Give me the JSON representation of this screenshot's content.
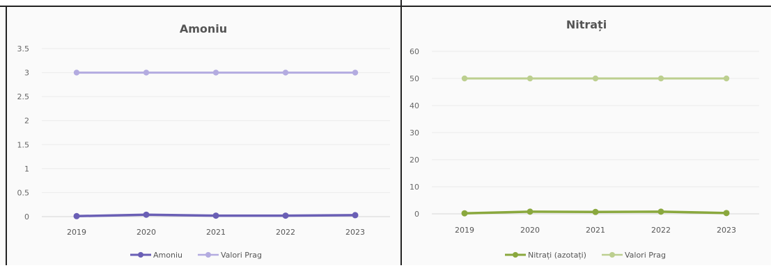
{
  "chart_data": [
    {
      "type": "line",
      "title": "Amoniu",
      "x": [
        "2019",
        "2020",
        "2021",
        "2022",
        "2023"
      ],
      "y_ticks": [
        "0",
        "0.5",
        "1",
        "1.5",
        "2",
        "2.5",
        "3",
        "3.5"
      ],
      "ylim": [
        0,
        3.5
      ],
      "grid": true,
      "legend_position": "bottom",
      "series": [
        {
          "name": "Amoniu",
          "values": [
            0.01,
            0.04,
            0.02,
            0.02,
            0.03
          ],
          "color": "#6a5fb5"
        },
        {
          "name": "Valori Prag",
          "values": [
            3,
            3,
            3,
            3,
            3
          ],
          "color": "#b3abe0"
        }
      ]
    },
    {
      "type": "line",
      "title": "Nitrați",
      "x": [
        "2019",
        "2020",
        "2021",
        "2022",
        "2023"
      ],
      "y_ticks": [
        "0",
        "10",
        "20",
        "30",
        "40",
        "50",
        "60"
      ],
      "ylim": [
        0,
        60
      ],
      "grid": true,
      "legend_position": "bottom",
      "series": [
        {
          "name": "Nitrați (azotați)",
          "values": [
            0.2,
            0.8,
            0.7,
            0.8,
            0.3
          ],
          "color": "#8aa83e"
        },
        {
          "name": "Valori Prag",
          "values": [
            50,
            50,
            50,
            50,
            50
          ],
          "color": "#bccf8f"
        }
      ]
    }
  ]
}
